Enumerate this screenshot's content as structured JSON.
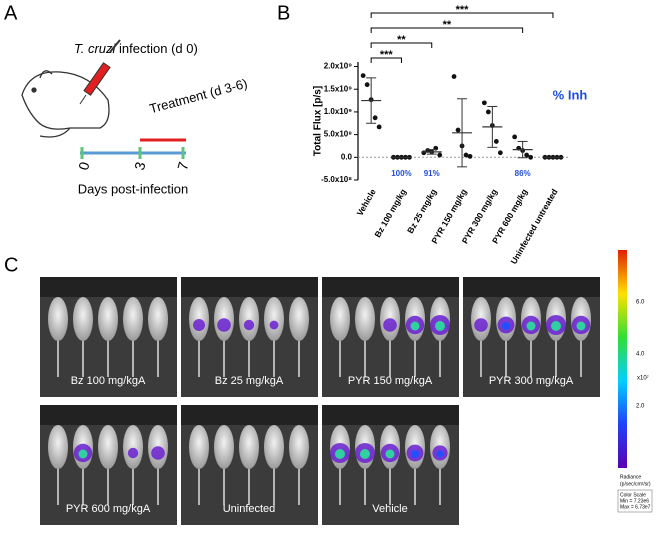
{
  "panel_a": {
    "label": "A",
    "infection_organism": "T. cruzi",
    "infection_text": "infection (d 0)",
    "treatment": "Treatment (d 3-6)",
    "days": [
      "0",
      "3",
      "7"
    ],
    "axis_label": "Days post-infection"
  },
  "panel_b_label": "B",
  "chart_data": {
    "type": "dot",
    "y_label": "Total Flux [p/s]",
    "categories": [
      "Vehicle",
      "Bz 100 mg/kg",
      "Bz 25 mg/kg",
      "PYR 150 mg/kg",
      "PYR 300 mg/kg",
      "PYR 600 mg/kg",
      "Uninfected untreated"
    ],
    "values": [
      [
        1800000000,
        1600000000,
        1270000000,
        870000000,
        670000000
      ],
      [
        0,
        0,
        0,
        0,
        0
      ],
      [
        100000000,
        150000000,
        120000000,
        200000000,
        50000000
      ],
      [
        1780000000,
        600000000,
        250000000,
        50000000,
        20000000
      ],
      [
        1200000000,
        1000000000,
        700000000,
        350000000,
        100000000
      ],
      [
        450000000,
        200000000,
        150000000,
        50000000,
        0
      ],
      [
        0,
        0,
        0,
        0,
        0
      ]
    ],
    "means": [
      1250000000,
      0,
      120000000,
      540000000,
      670000000,
      170000000,
      0
    ],
    "sd": [
      500000000,
      0,
      50000000,
      750000000,
      450000000,
      180000000,
      0
    ],
    "ylim": [
      -500000000,
      2100000000
    ],
    "yticks": [
      {
        "value": -500000000,
        "label": "-5.0x10⁸"
      },
      {
        "value": 0,
        "label": "0.0"
      },
      {
        "value": 500000000,
        "label": "5.0x10⁸"
      },
      {
        "value": 1000000000,
        "label": "1.0x10⁹"
      },
      {
        "value": 1500000000,
        "label": "1.5x10⁹"
      },
      {
        "value": 2000000000,
        "label": "2.0x10⁹"
      }
    ],
    "inhibition_title": "% Inh",
    "inhibition_labels": [
      null,
      "100%",
      "91%",
      null,
      null,
      "86%",
      null
    ],
    "significance": [
      {
        "pair": [
          0,
          6
        ],
        "label": "***"
      },
      {
        "pair": [
          0,
          5
        ],
        "label": "**"
      },
      {
        "pair": [
          0,
          2
        ],
        "label": "**"
      },
      {
        "pair": [
          0,
          1
        ],
        "label": "***"
      }
    ],
    "point_color": "#111111",
    "label_color": "#1f4fd8"
  },
  "panel_c": {
    "label": "C",
    "images": [
      "Bz 100 mg/kgA",
      "Bz 25 mg/kgA",
      "PYR 150 mg/kgA",
      "PYR 300 mg/kgA",
      "PYR 600 mg/kgA",
      "Uninfected",
      "Vehicle"
    ],
    "color_scale": {
      "ticks": [
        "6.0",
        "4.0",
        "2.0"
      ],
      "exponent": "x10⁷",
      "title": "Radiance",
      "unit": "(p/sec/cm²/sr)",
      "legend": [
        "Color Scale",
        "Min = 7.23e6",
        "Max = 6.73e7"
      ]
    }
  }
}
